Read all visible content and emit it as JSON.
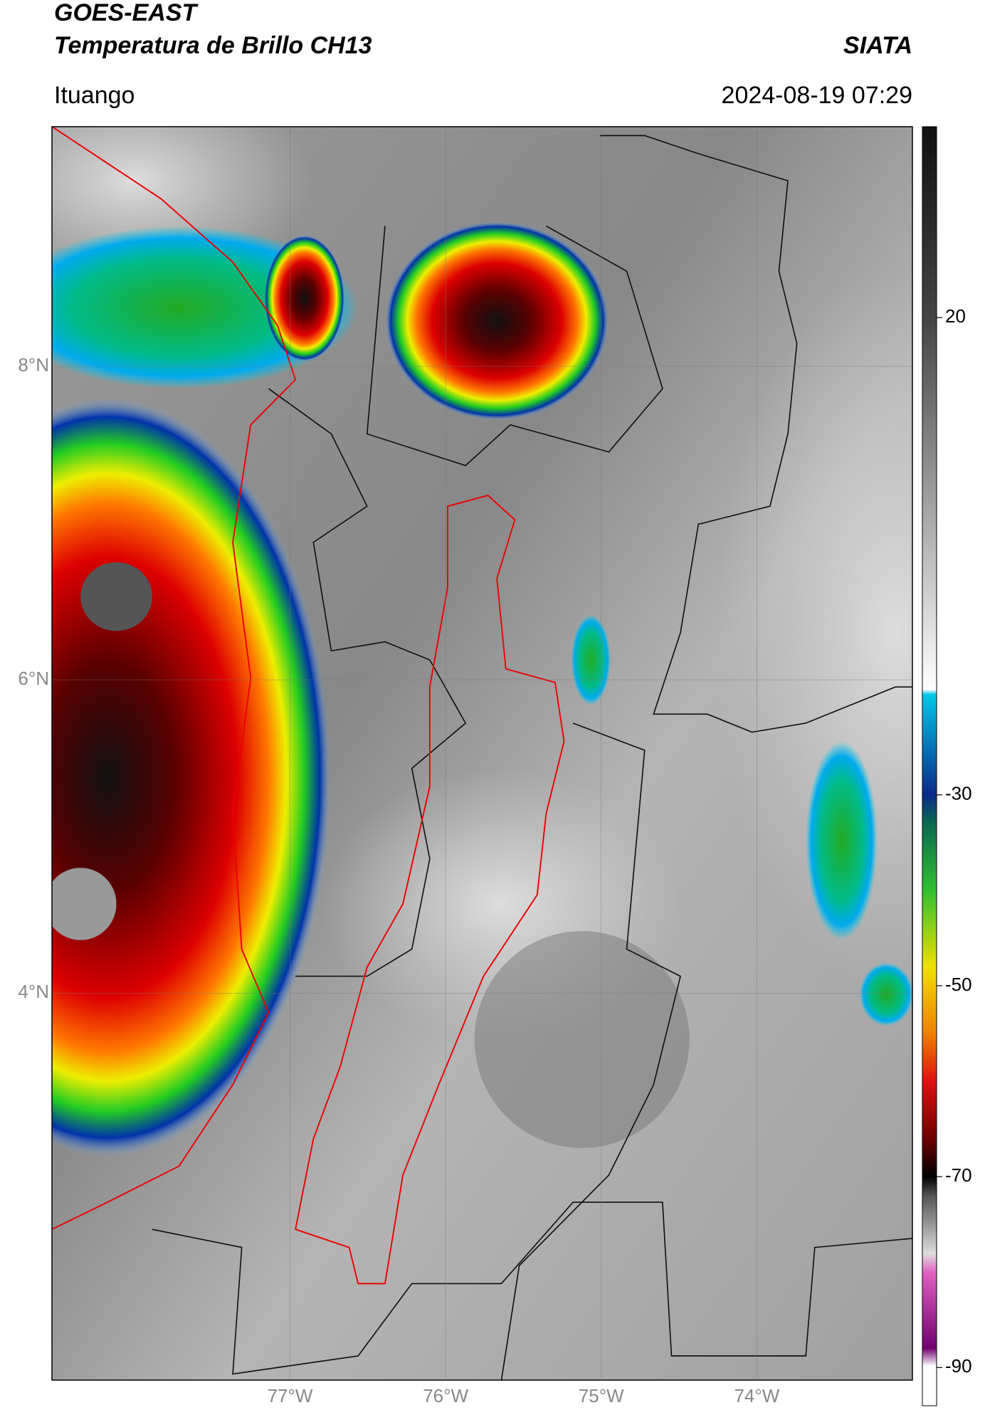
{
  "header": {
    "title": "GOES-EAST",
    "subtitle": "Temperatura de Brillo CH13",
    "source": "SIATA",
    "location": "Ituango",
    "timestamp": "2024-08-19 07:29"
  },
  "chart_data": {
    "type": "map",
    "xlim": [
      -78.53,
      -73.0
    ],
    "ylim": [
      1.53,
      9.53
    ],
    "xticks": [
      {
        "value": -77,
        "label": "77°W"
      },
      {
        "value": -76,
        "label": "76°W"
      },
      {
        "value": -75,
        "label": "75°W"
      },
      {
        "value": -74,
        "label": "74°W"
      }
    ],
    "yticks": [
      {
        "value": 4,
        "label": "4°N"
      },
      {
        "value": 6,
        "label": "6°N"
      },
      {
        "value": 8,
        "label": "8°N"
      }
    ],
    "grid": true,
    "colorbar": {
      "lim": [
        -94,
        40
      ],
      "ticks": [
        20,
        -30,
        -50,
        -70,
        -90
      ]
    }
  }
}
